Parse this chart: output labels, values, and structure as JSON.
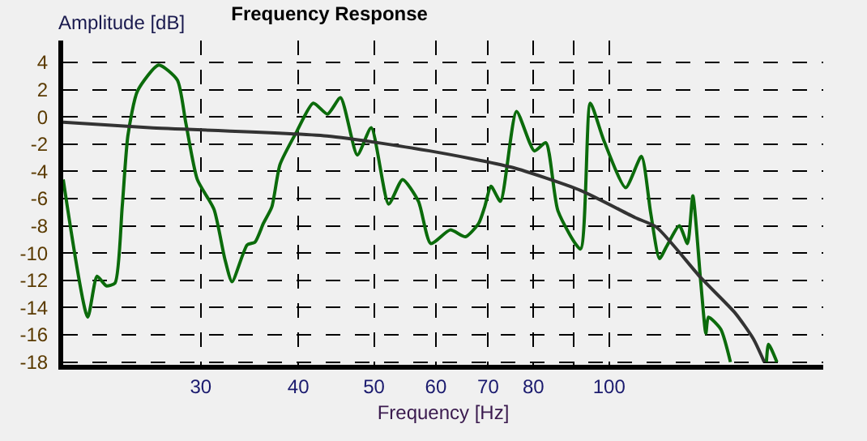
{
  "chart_data": {
    "type": "line",
    "title": "Frequency Response",
    "xlabel": "Frequency [Hz]",
    "ylabel": "Amplitude [dB]",
    "log": "x",
    "grid": true,
    "marker": "none",
    "line_style": "solid",
    "xlim": [
      20,
      188
    ],
    "xticks": [
      30,
      40,
      50,
      60,
      70,
      80,
      {
        "value": 90,
        "label": null
      },
      100
    ],
    "ylim": [
      -18.2,
      5.6
    ],
    "yticks": [
      4,
      2,
      0,
      -2,
      -4,
      -6,
      -8,
      -10,
      -12,
      -14,
      -16,
      -18
    ],
    "series": [
      {
        "color": "#0b6b0b",
        "x": [
          20,
          21.5,
          22.1,
          22.7,
          23.3,
          23.8,
          24.2,
          24.9,
          26.5,
          28.0,
          28.7,
          29.7,
          31.2,
          32.2,
          32.9,
          34.4,
          35.2,
          36.1,
          37.0,
          37.9,
          39.8,
          41.8,
          43.6,
          45.3,
          47.6,
          49.6,
          52.2,
          54.4,
          57.0,
          59.1,
          62.6,
          65.5,
          68.1,
          69.3,
          70.6,
          72.6,
          76.1,
          80.2,
          83.0,
          86.0,
          91.9,
          94.6,
          98.4,
          105,
          110,
          113,
          116,
          118.5,
          123,
          126,
          128,
          131,
          133,
          134,
          139,
          143,
          150,
          159,
          160,
          164
        ],
        "values": [
          -4.6,
          -14.7,
          -11.7,
          -12.4,
          -12.2,
          -6.6,
          -1.4,
          1.9,
          3.8,
          2.7,
          -0.4,
          -4.6,
          -6.8,
          -10.4,
          -12.1,
          -9.4,
          -9.2,
          -7.8,
          -6.6,
          -3.5,
          -1.1,
          1.0,
          0.2,
          1.4,
          -2.8,
          -0.8,
          -6.4,
          -4.6,
          -6.2,
          -9.3,
          -8.3,
          -8.8,
          -7.8,
          -6.6,
          -5.1,
          -6.2,
          0.4,
          -2.5,
          -1.9,
          -6.9,
          -9.7,
          1.0,
          -1.7,
          -5.2,
          -2.9,
          -7.0,
          -10.4,
          -9.5,
          -8.0,
          -9.3,
          -5.8,
          -12.1,
          -15.9,
          -14.7,
          -15.6,
          -18,
          null,
          -18,
          -16.7,
          -18
        ]
      },
      {
        "color": "#333333",
        "x": [
          20,
          25.8,
          43.5,
          58.9,
          75,
          91.9,
          108,
          115,
          131,
          145,
          153,
          158
        ],
        "values": [
          -0.4,
          -0.8,
          -1.4,
          -2.5,
          -3.7,
          -5.4,
          -7.4,
          -8.1,
          -11.8,
          -14.4,
          -16.3,
          -18
        ]
      }
    ]
  }
}
